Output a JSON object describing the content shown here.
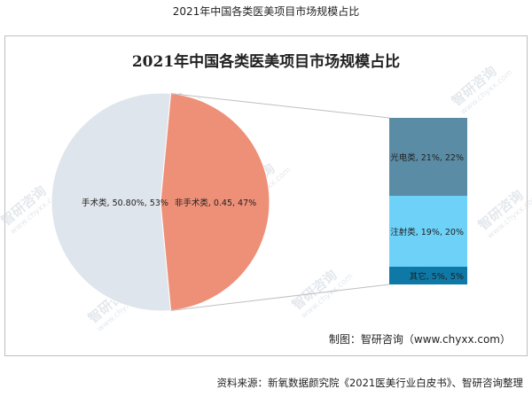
{
  "page_title": "2021年中国各类医美项目市场规模占比",
  "watermark": {
    "brand": "智研咨询",
    "url": "www.chyxx.com"
  },
  "credit": "制图：智研咨询（www.chyxx.com）",
  "source": "资料来源：新氧数据颜究院《2021医美行业白皮书》、智研咨询整理",
  "colors": {
    "surgical": "#dfe5ec",
    "nonsurgical": "#ee9078",
    "photoelectric": "#5b8ca6",
    "injection": "#6ed1f8",
    "other": "#0e78a6",
    "connector": "#bfbfbf"
  },
  "chart_data": {
    "type": "pie",
    "subtype": "bar-of-pie",
    "title": "2021年中国各类医美项目市场规模占比",
    "pie": {
      "slices": [
        {
          "name": "手术类",
          "label": "手术类, 50.80%, 53%",
          "value": 53
        },
        {
          "name": "非手术类",
          "label": "非手术类, 0.45, 47%",
          "value": 47
        }
      ]
    },
    "bar": {
      "of": "非手术类",
      "segments": [
        {
          "name": "光电类",
          "label": "光电类, 21%, 22%",
          "value": 22
        },
        {
          "name": "注射类",
          "label": "注射类, 19%, 20%",
          "value": 20
        },
        {
          "name": "其它",
          "label": "其它, 5%, 5%",
          "value": 5
        }
      ]
    }
  }
}
